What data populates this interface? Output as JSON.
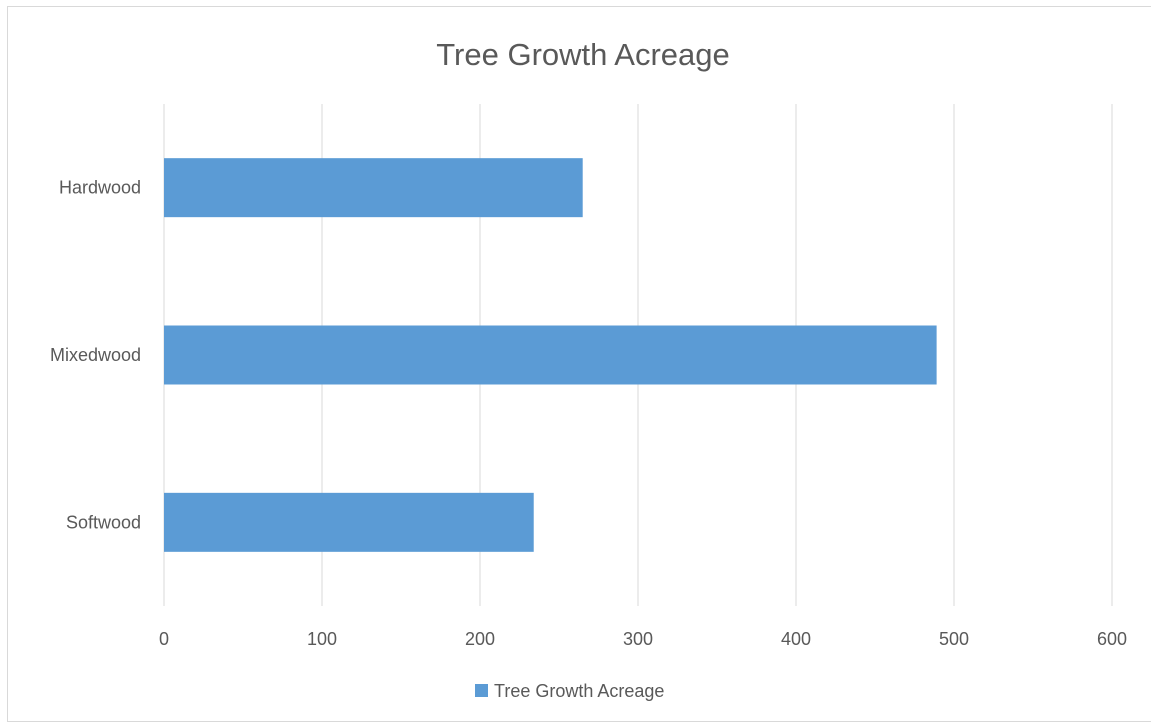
{
  "chart_data": {
    "type": "bar",
    "orientation": "horizontal",
    "title": "Tree Growth Acreage",
    "categories": [
      "Softwood",
      "Mixedwood",
      "Hardwood"
    ],
    "series": [
      {
        "name": "Tree Growth Acreage",
        "values": [
          234,
          489,
          265
        ],
        "color": "#5b9bd5"
      }
    ],
    "xlim": [
      0,
      600
    ],
    "x_ticks": [
      "0",
      "100",
      "200",
      "300",
      "400",
      "500",
      "600"
    ],
    "xlabel": "",
    "ylabel": "",
    "grid": true,
    "gridline_color": "#d9d9d9",
    "legend": {
      "position": "bottom",
      "entries": [
        "Tree Growth Acreage"
      ]
    }
  }
}
